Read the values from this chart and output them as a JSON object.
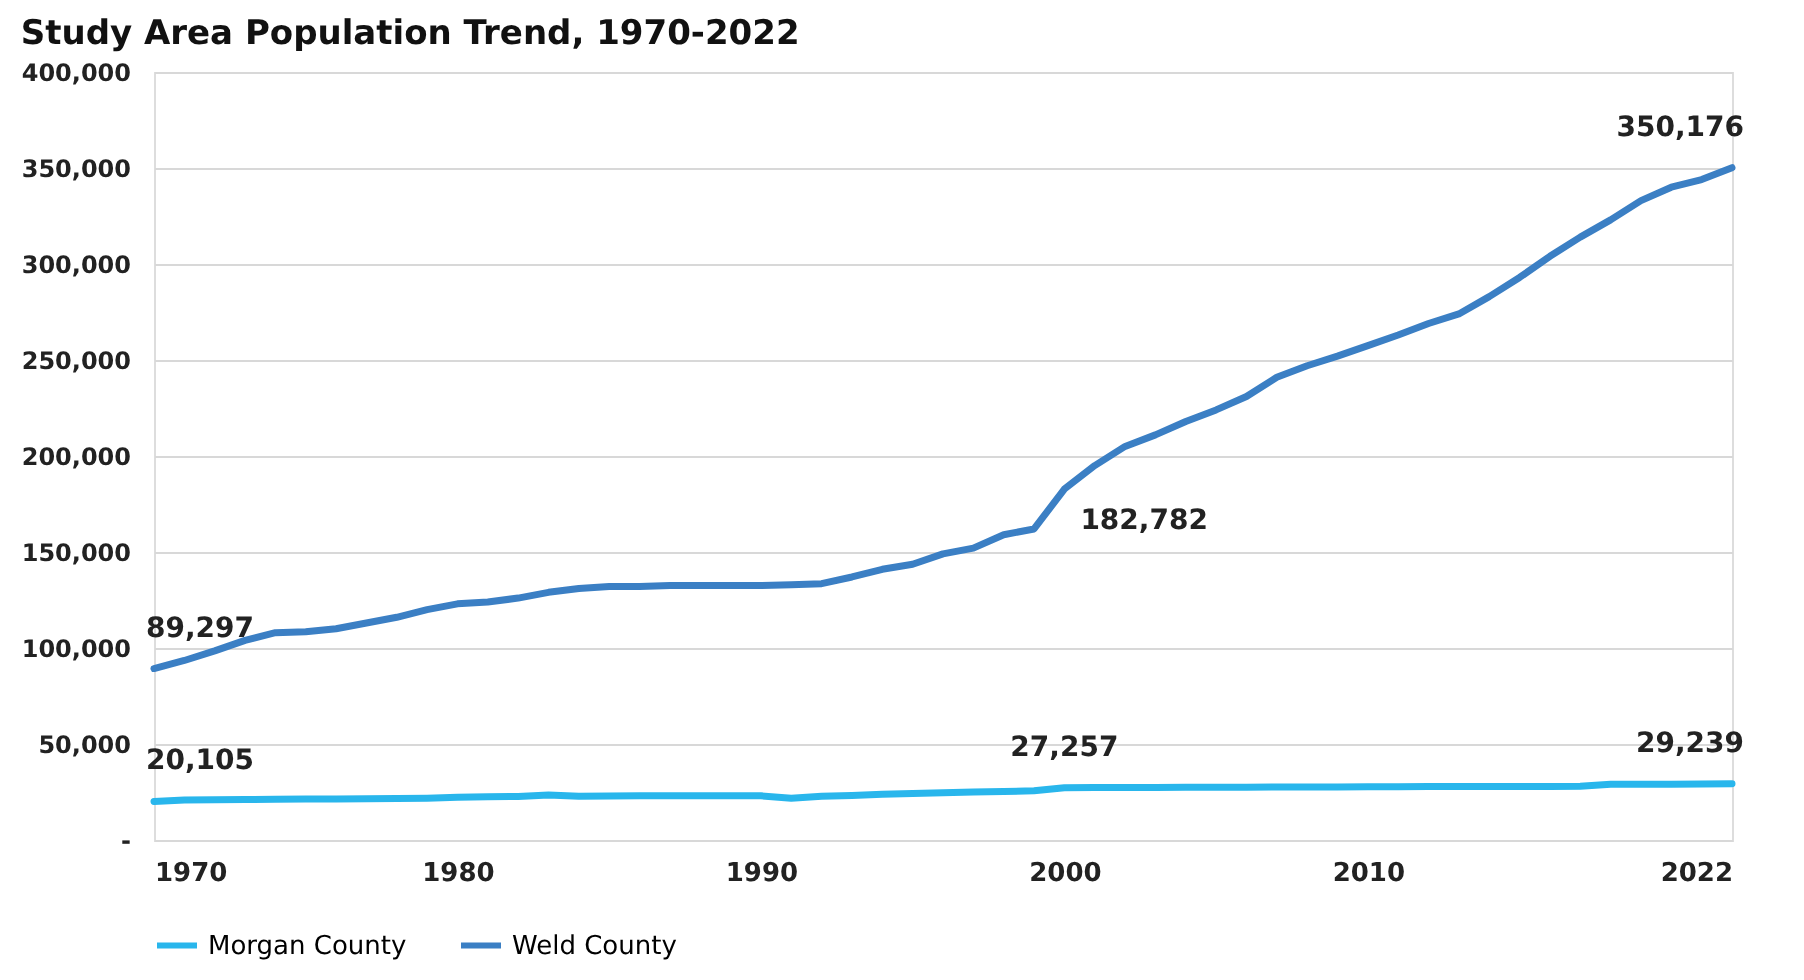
{
  "chart_data": {
    "type": "line",
    "title": "Study Area Population Trend, 1970-2022",
    "x": [
      1970,
      1971,
      1972,
      1973,
      1974,
      1975,
      1976,
      1977,
      1978,
      1979,
      1980,
      1981,
      1982,
      1983,
      1984,
      1985,
      1986,
      1987,
      1988,
      1989,
      1990,
      1991,
      1992,
      1993,
      1994,
      1995,
      1996,
      1997,
      1998,
      1999,
      2000,
      2001,
      2002,
      2003,
      2004,
      2005,
      2006,
      2007,
      2008,
      2009,
      2010,
      2011,
      2012,
      2013,
      2014,
      2015,
      2016,
      2017,
      2018,
      2019,
      2020,
      2021,
      2022
    ],
    "series": [
      {
        "name": "Morgan County",
        "color": "#29b6ec",
        "values": [
          20105,
          20800,
          21000,
          21100,
          21200,
          21300,
          21400,
          21500,
          21600,
          21800,
          22300,
          22500,
          22700,
          23400,
          22800,
          22900,
          23000,
          23000,
          23100,
          23100,
          23000,
          21800,
          22800,
          23200,
          23800,
          24200,
          24600,
          25000,
          25300,
          25600,
          27257,
          27300,
          27400,
          27400,
          27500,
          27500,
          27500,
          27600,
          27600,
          27600,
          27700,
          27700,
          27800,
          27800,
          27800,
          27900,
          27900,
          28000,
          29000,
          29100,
          29100,
          29200,
          29239
        ]
      },
      {
        "name": "Weld County",
        "color": "#3b7fc4",
        "values": [
          89297,
          93500,
          98500,
          104000,
          108000,
          108500,
          110000,
          113000,
          116000,
          120000,
          123000,
          124000,
          126000,
          129000,
          131000,
          132000,
          132000,
          132500,
          132500,
          132500,
          132500,
          133000,
          133500,
          137000,
          141000,
          143600,
          149000,
          152000,
          159000,
          162000,
          182782,
          195000,
          205000,
          211000,
          218000,
          224000,
          231000,
          241000,
          247000,
          252000,
          257500,
          263000,
          269000,
          274000,
          283000,
          293000,
          304000,
          314000,
          323000,
          333000,
          340000,
          344000,
          350176
        ]
      }
    ],
    "annotations": [
      {
        "text": "20,105",
        "x": 1970,
        "y": 20105
      },
      {
        "text": "89,297",
        "x": 1970,
        "y": 89297
      },
      {
        "text": "27,257",
        "x": 2000,
        "y": 27257
      },
      {
        "text": "182,782",
        "x": 2000,
        "y": 182782
      },
      {
        "text": "29,239",
        "x": 2022,
        "y": 29239
      },
      {
        "text": "350,176",
        "x": 2022,
        "y": 350176
      }
    ],
    "xlim": [
      1970,
      2022
    ],
    "xticks": [
      1970,
      1980,
      1990,
      2000,
      2010,
      2022
    ],
    "ylim": [
      0,
      400000
    ],
    "yticks": [
      {
        "value": 0,
        "label": "-"
      },
      {
        "value": 50000,
        "label": "50,000"
      },
      {
        "value": 100000,
        "label": "100,000"
      },
      {
        "value": 150000,
        "label": "150,000"
      },
      {
        "value": 200000,
        "label": "200,000"
      },
      {
        "value": 250000,
        "label": "250,000"
      },
      {
        "value": 300000,
        "label": "300,000"
      },
      {
        "value": 350000,
        "label": "350,000"
      },
      {
        "value": 400000,
        "label": "400,000"
      }
    ],
    "grid": "y",
    "legend": "bottom",
    "marker": "none",
    "line_style": "solid"
  }
}
